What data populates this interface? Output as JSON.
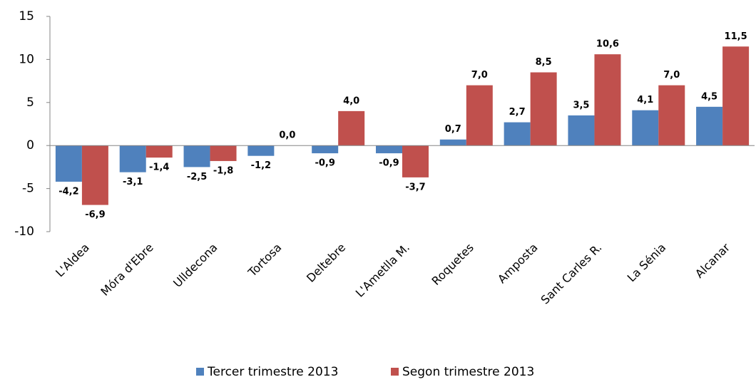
{
  "chart_data": {
    "type": "bar",
    "categories": [
      "L'Aldea",
      "Móra d'Ebre",
      "Ulldecona",
      "Tortosa",
      "Deltebre",
      "L'Ametlla M.",
      "Roquetes",
      "Amposta",
      "Sant Carles R.",
      "La Sénia",
      "Alcanar"
    ],
    "series": [
      {
        "name": "Tercer trimestre 2013",
        "color": "#4f81bd",
        "values": [
          -4.2,
          -3.1,
          -2.5,
          -1.2,
          -0.9,
          -0.9,
          0.7,
          2.7,
          3.5,
          4.1,
          4.5
        ],
        "value_labels": [
          "-4,2",
          "-3,1",
          "-2,5",
          "-1,2",
          "-0,9",
          "-0,9",
          "0,7",
          "2,7",
          "3,5",
          "4,1",
          "4,5"
        ]
      },
      {
        "name": "Segon trimestre 2013",
        "color": "#c0504d",
        "values": [
          -6.9,
          -1.4,
          -1.8,
          0.0,
          4.0,
          -3.7,
          7.0,
          8.5,
          10.6,
          7.0,
          11.5
        ],
        "value_labels": [
          "-6,9",
          "-1,4",
          "-1,8",
          "0,0",
          "4,0",
          "-3,7",
          "7,0",
          "8,5",
          "10,6",
          "7,0",
          "11,5"
        ]
      }
    ],
    "ylim": [
      -10,
      15
    ],
    "yticks": [
      -10,
      -5,
      0,
      5,
      10,
      15
    ],
    "grid": false,
    "legend": "bottom"
  }
}
